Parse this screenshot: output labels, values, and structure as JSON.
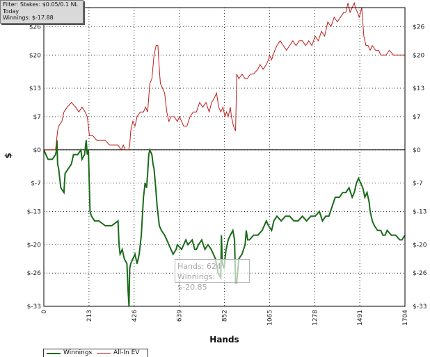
{
  "filter": {
    "line1": "Filter: Stakes: $0.05/0.1 NL",
    "line2": "Today",
    "line3": "Winnings: $-17.88"
  },
  "tooltip": {
    "hands": "Hands: 624",
    "winnings": "Winnings: $-20.85"
  },
  "legend": {
    "winnings_label": "Winnings",
    "allin_label": "All-In EV"
  },
  "colors": {
    "winnings": "#1a6b1a",
    "allin": "#c01c1c",
    "grid": "#333333"
  },
  "chart_data": {
    "type": "line",
    "xlabel": "Hands",
    "ylabel": "$",
    "xlim": [
      0,
      1704
    ],
    "ylim": [
      -33,
      30
    ],
    "x_ticks": [
      0,
      213,
      426,
      639,
      852,
      1065,
      1278,
      1491,
      1704
    ],
    "y_ticks": [
      -33,
      -26,
      -20,
      -13,
      -7,
      0,
      7,
      13,
      20,
      26
    ],
    "y_tick_labels": [
      "$-33",
      "$-26",
      "$-20",
      "$-13",
      "$-7",
      "$0",
      "$7",
      "$13",
      "$20",
      "$26"
    ],
    "grid": true,
    "legend_position": "bottom-left",
    "series": [
      {
        "name": "Winnings",
        "color": "#1a6b1a",
        "points": [
          [
            0,
            0
          ],
          [
            10,
            -1
          ],
          [
            20,
            -2
          ],
          [
            40,
            -2
          ],
          [
            55,
            -1
          ],
          [
            60,
            0
          ],
          [
            62,
            2
          ],
          [
            65,
            -3
          ],
          [
            70,
            -4
          ],
          [
            80,
            -8
          ],
          [
            95,
            -9
          ],
          [
            100,
            -5
          ],
          [
            115,
            -4
          ],
          [
            130,
            -3
          ],
          [
            140,
            -1
          ],
          [
            160,
            -1
          ],
          [
            175,
            0
          ],
          [
            180,
            -2
          ],
          [
            192,
            -1
          ],
          [
            200,
            2
          ],
          [
            205,
            -1
          ],
          [
            210,
            0
          ],
          [
            215,
            -8
          ],
          [
            218,
            -13
          ],
          [
            225,
            -14
          ],
          [
            240,
            -15
          ],
          [
            260,
            -15
          ],
          [
            290,
            -16
          ],
          [
            320,
            -16
          ],
          [
            350,
            -15
          ],
          [
            355,
            -20
          ],
          [
            360,
            -22
          ],
          [
            370,
            -21
          ],
          [
            380,
            -23
          ],
          [
            392,
            -24
          ],
          [
            398,
            -30
          ],
          [
            402,
            -33
          ],
          [
            405,
            -25
          ],
          [
            410,
            -24
          ],
          [
            430,
            -22
          ],
          [
            440,
            -24
          ],
          [
            450,
            -22
          ],
          [
            455,
            -20
          ],
          [
            460,
            -18
          ],
          [
            470,
            -10
          ],
          [
            478,
            -7
          ],
          [
            485,
            -8
          ],
          [
            490,
            -5
          ],
          [
            495,
            -1
          ],
          [
            500,
            0
          ],
          [
            510,
            -1
          ],
          [
            515,
            -3
          ],
          [
            520,
            -4
          ],
          [
            528,
            -8
          ],
          [
            535,
            -12
          ],
          [
            545,
            -16
          ],
          [
            555,
            -17
          ],
          [
            570,
            -18
          ],
          [
            580,
            -19
          ],
          [
            590,
            -20
          ],
          [
            600,
            -21
          ],
          [
            610,
            -22
          ],
          [
            624,
            -21
          ],
          [
            630,
            -20
          ],
          [
            650,
            -21
          ],
          [
            660,
            -20
          ],
          [
            670,
            -19
          ],
          [
            680,
            -20
          ],
          [
            700,
            -19
          ],
          [
            712,
            -21
          ],
          [
            720,
            -21
          ],
          [
            730,
            -20
          ],
          [
            745,
            -19
          ],
          [
            760,
            -21
          ],
          [
            775,
            -20
          ],
          [
            790,
            -21
          ],
          [
            810,
            -23
          ],
          [
            822,
            -26
          ],
          [
            835,
            -27
          ],
          [
            838,
            -18
          ],
          [
            842,
            -24
          ],
          [
            850,
            -25
          ],
          [
            860,
            -21
          ],
          [
            870,
            -19
          ],
          [
            880,
            -18
          ],
          [
            892,
            -17
          ],
          [
            900,
            -19
          ],
          [
            905,
            -28
          ],
          [
            910,
            -28
          ],
          [
            920,
            -23
          ],
          [
            935,
            -22
          ],
          [
            950,
            -20
          ],
          [
            955,
            -17
          ],
          [
            962,
            -19
          ],
          [
            970,
            -19
          ],
          [
            990,
            -18
          ],
          [
            1010,
            -18
          ],
          [
            1030,
            -17
          ],
          [
            1050,
            -15
          ],
          [
            1060,
            -16
          ],
          [
            1075,
            -17
          ],
          [
            1085,
            -15
          ],
          [
            1100,
            -14
          ],
          [
            1120,
            -15
          ],
          [
            1140,
            -14
          ],
          [
            1160,
            -14
          ],
          [
            1180,
            -15
          ],
          [
            1200,
            -15
          ],
          [
            1220,
            -14
          ],
          [
            1240,
            -15
          ],
          [
            1260,
            -14
          ],
          [
            1280,
            -14
          ],
          [
            1300,
            -13
          ],
          [
            1315,
            -15
          ],
          [
            1330,
            -14
          ],
          [
            1345,
            -14
          ],
          [
            1360,
            -12
          ],
          [
            1375,
            -10
          ],
          [
            1395,
            -10
          ],
          [
            1410,
            -9
          ],
          [
            1425,
            -9
          ],
          [
            1440,
            -8
          ],
          [
            1455,
            -10
          ],
          [
            1465,
            -9
          ],
          [
            1475,
            -7
          ],
          [
            1485,
            -6
          ],
          [
            1495,
            -7
          ],
          [
            1505,
            -8
          ],
          [
            1515,
            -10
          ],
          [
            1525,
            -9
          ],
          [
            1530,
            -10
          ],
          [
            1535,
            -11
          ],
          [
            1540,
            -13
          ],
          [
            1550,
            -15
          ],
          [
            1560,
            -16
          ],
          [
            1575,
            -17
          ],
          [
            1590,
            -17
          ],
          [
            1600,
            -18
          ],
          [
            1610,
            -18
          ],
          [
            1620,
            -17
          ],
          [
            1640,
            -18
          ],
          [
            1660,
            -18
          ],
          [
            1680,
            -19
          ],
          [
            1690,
            -19
          ],
          [
            1704,
            -18
          ]
        ]
      },
      {
        "name": "All-In EV",
        "color": "#c01c1c",
        "points": [
          [
            0,
            0
          ],
          [
            10,
            0
          ],
          [
            20,
            0
          ],
          [
            40,
            0
          ],
          [
            55,
            0
          ],
          [
            60,
            2
          ],
          [
            65,
            4
          ],
          [
            70,
            5
          ],
          [
            85,
            6
          ],
          [
            95,
            8
          ],
          [
            110,
            9
          ],
          [
            130,
            10
          ],
          [
            150,
            9
          ],
          [
            165,
            8
          ],
          [
            180,
            9
          ],
          [
            195,
            8
          ],
          [
            205,
            7
          ],
          [
            210,
            5
          ],
          [
            215,
            3
          ],
          [
            230,
            3
          ],
          [
            250,
            2
          ],
          [
            270,
            2
          ],
          [
            290,
            2
          ],
          [
            310,
            1
          ],
          [
            330,
            1
          ],
          [
            350,
            1
          ],
          [
            365,
            0
          ],
          [
            375,
            1
          ],
          [
            385,
            0
          ],
          [
            400,
            0
          ],
          [
            405,
            1
          ],
          [
            410,
            4
          ],
          [
            420,
            6
          ],
          [
            430,
            5
          ],
          [
            440,
            7
          ],
          [
            455,
            8
          ],
          [
            470,
            8
          ],
          [
            480,
            9
          ],
          [
            490,
            8
          ],
          [
            500,
            14
          ],
          [
            510,
            15
          ],
          [
            520,
            20
          ],
          [
            530,
            22
          ],
          [
            538,
            22
          ],
          [
            545,
            17
          ],
          [
            550,
            14
          ],
          [
            560,
            13
          ],
          [
            570,
            12
          ],
          [
            580,
            8
          ],
          [
            590,
            6
          ],
          [
            600,
            7
          ],
          [
            615,
            7
          ],
          [
            630,
            6
          ],
          [
            640,
            7
          ],
          [
            650,
            6
          ],
          [
            660,
            5
          ],
          [
            675,
            5
          ],
          [
            690,
            7
          ],
          [
            705,
            8
          ],
          [
            720,
            8
          ],
          [
            735,
            10
          ],
          [
            750,
            9
          ],
          [
            765,
            10
          ],
          [
            780,
            8
          ],
          [
            792,
            10
          ],
          [
            805,
            11
          ],
          [
            815,
            12
          ],
          [
            825,
            9
          ],
          [
            835,
            8
          ],
          [
            845,
            9
          ],
          [
            855,
            7
          ],
          [
            862,
            8
          ],
          [
            870,
            7
          ],
          [
            880,
            9
          ],
          [
            885,
            7
          ],
          [
            890,
            6
          ],
          [
            895,
            5
          ],
          [
            905,
            4
          ],
          [
            910,
            16
          ],
          [
            920,
            15
          ],
          [
            935,
            16
          ],
          [
            950,
            15
          ],
          [
            960,
            15
          ],
          [
            975,
            16
          ],
          [
            990,
            16
          ],
          [
            1010,
            17
          ],
          [
            1020,
            18
          ],
          [
            1035,
            17
          ],
          [
            1050,
            18
          ],
          [
            1060,
            19
          ],
          [
            1065,
            20
          ],
          [
            1075,
            19
          ],
          [
            1090,
            21
          ],
          [
            1100,
            22
          ],
          [
            1115,
            23
          ],
          [
            1130,
            22
          ],
          [
            1145,
            21
          ],
          [
            1160,
            22
          ],
          [
            1175,
            23
          ],
          [
            1190,
            22
          ],
          [
            1205,
            23
          ],
          [
            1220,
            23
          ],
          [
            1235,
            22
          ],
          [
            1250,
            23
          ],
          [
            1265,
            22
          ],
          [
            1280,
            24
          ],
          [
            1295,
            23
          ],
          [
            1310,
            25
          ],
          [
            1325,
            24
          ],
          [
            1340,
            27
          ],
          [
            1355,
            26
          ],
          [
            1370,
            28
          ],
          [
            1385,
            27
          ],
          [
            1400,
            28
          ],
          [
            1415,
            29
          ],
          [
            1425,
            29
          ],
          [
            1435,
            31
          ],
          [
            1445,
            29
          ],
          [
            1455,
            30
          ],
          [
            1465,
            31
          ],
          [
            1470,
            30
          ],
          [
            1480,
            29
          ],
          [
            1488,
            28
          ],
          [
            1495,
            29
          ],
          [
            1500,
            30
          ],
          [
            1510,
            24
          ],
          [
            1520,
            22
          ],
          [
            1530,
            22
          ],
          [
            1540,
            21
          ],
          [
            1550,
            22
          ],
          [
            1565,
            21
          ],
          [
            1580,
            21
          ],
          [
            1590,
            20
          ],
          [
            1600,
            20
          ],
          [
            1615,
            20
          ],
          [
            1630,
            21
          ],
          [
            1650,
            20
          ],
          [
            1665,
            20
          ],
          [
            1680,
            20
          ],
          [
            1704,
            20
          ]
        ]
      }
    ]
  }
}
